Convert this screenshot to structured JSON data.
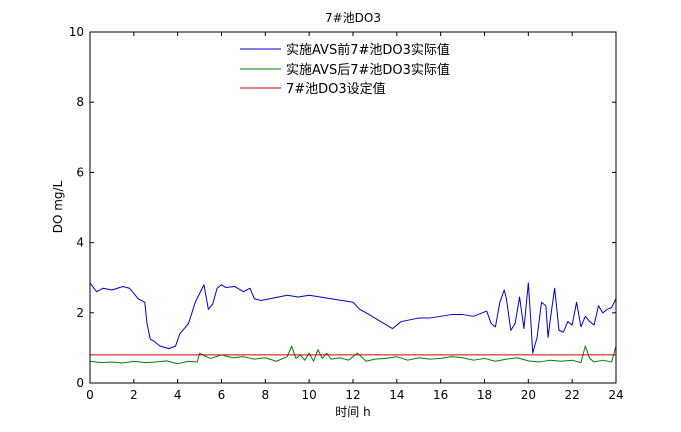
{
  "chart_data": {
    "type": "line",
    "title": "7#池DO3",
    "xlabel": "时间 h",
    "ylabel": "DO mg/L",
    "xlim": [
      0,
      24
    ],
    "ylim": [
      0,
      10
    ],
    "xticks": [
      0,
      2,
      4,
      6,
      8,
      10,
      12,
      14,
      16,
      18,
      20,
      22,
      24
    ],
    "yticks": [
      0,
      2,
      4,
      6,
      8,
      10
    ],
    "grid": false,
    "legend_position": "top-center",
    "series": [
      {
        "name": "实施AVS前7#池DO3实际值",
        "color": "#0000cc",
        "x": [
          0,
          0.3,
          0.6,
          1,
          1.5,
          1.8,
          2.2,
          2.5,
          2.6,
          2.75,
          2.9,
          3.2,
          3.6,
          3.9,
          4.1,
          4.3,
          4.5,
          4.8,
          5.0,
          5.2,
          5.4,
          5.6,
          5.8,
          6.0,
          6.2,
          6.6,
          7.0,
          7.3,
          7.5,
          7.8,
          8.2,
          8.6,
          9.0,
          9.5,
          10.0,
          10.5,
          11.0,
          11.5,
          12.0,
          12.3,
          12.6,
          13.0,
          13.4,
          13.8,
          14.2,
          14.6,
          15.0,
          15.5,
          16.0,
          16.5,
          17.0,
          17.5,
          17.9,
          18.1,
          18.3,
          18.5,
          18.7,
          18.9,
          19.0,
          19.2,
          19.4,
          19.6,
          19.8,
          20.0,
          20.1,
          20.2,
          20.4,
          20.6,
          20.8,
          20.9,
          21.0,
          21.2,
          21.4,
          21.6,
          21.8,
          22.0,
          22.2,
          22.4,
          22.6,
          22.8,
          23.0,
          23.2,
          23.4,
          23.6,
          23.8,
          24.0
        ],
        "y": [
          2.85,
          2.6,
          2.7,
          2.65,
          2.75,
          2.7,
          2.4,
          2.3,
          1.7,
          1.25,
          1.2,
          1.05,
          0.98,
          1.05,
          1.4,
          1.55,
          1.7,
          2.3,
          2.55,
          2.8,
          2.1,
          2.25,
          2.7,
          2.8,
          2.72,
          2.75,
          2.6,
          2.7,
          2.4,
          2.35,
          2.4,
          2.45,
          2.5,
          2.45,
          2.5,
          2.45,
          2.4,
          2.35,
          2.3,
          2.1,
          2.0,
          1.85,
          1.7,
          1.55,
          1.75,
          1.8,
          1.85,
          1.85,
          1.9,
          1.95,
          1.95,
          1.9,
          2.0,
          2.05,
          1.7,
          1.6,
          2.3,
          2.65,
          2.4,
          1.5,
          1.7,
          2.45,
          1.55,
          2.85,
          1.9,
          0.85,
          1.3,
          2.3,
          2.2,
          1.3,
          1.8,
          2.7,
          1.5,
          1.45,
          1.75,
          1.65,
          2.3,
          1.6,
          1.9,
          1.75,
          1.65,
          2.2,
          2.0,
          2.1,
          2.15,
          2.4
        ]
      },
      {
        "name": "实施AVS后7#池DO3实际值",
        "color": "#008000",
        "x": [
          0,
          0.5,
          1,
          1.5,
          2,
          2.5,
          3,
          3.5,
          4,
          4.5,
          4.9,
          5.0,
          5.2,
          5.5,
          6,
          6.5,
          7,
          7.5,
          8,
          8.5,
          9.0,
          9.2,
          9.4,
          9.6,
          9.8,
          10.0,
          10.2,
          10.4,
          10.6,
          10.8,
          11.0,
          11.4,
          11.8,
          12.2,
          12.6,
          13,
          13.5,
          14,
          14.5,
          15,
          15.5,
          16,
          16.5,
          17,
          17.5,
          18,
          18.5,
          19,
          19.5,
          20,
          20.5,
          21,
          21.5,
          22,
          22.4,
          22.6,
          22.8,
          23,
          23.4,
          23.8,
          24.0
        ],
        "y": [
          0.62,
          0.58,
          0.6,
          0.57,
          0.62,
          0.58,
          0.6,
          0.63,
          0.55,
          0.62,
          0.6,
          0.85,
          0.78,
          0.7,
          0.8,
          0.72,
          0.75,
          0.68,
          0.72,
          0.62,
          0.75,
          1.05,
          0.7,
          0.8,
          0.65,
          0.85,
          0.62,
          0.95,
          0.7,
          0.85,
          0.68,
          0.72,
          0.65,
          0.85,
          0.62,
          0.68,
          0.7,
          0.75,
          0.65,
          0.72,
          0.68,
          0.7,
          0.75,
          0.72,
          0.65,
          0.7,
          0.62,
          0.68,
          0.72,
          0.63,
          0.6,
          0.65,
          0.62,
          0.65,
          0.58,
          1.05,
          0.7,
          0.6,
          0.65,
          0.6,
          1.05
        ]
      },
      {
        "name": "7#池DO3设定值",
        "color": "#cc0000",
        "x": [
          0,
          24
        ],
        "y": [
          0.8,
          0.8
        ]
      }
    ]
  }
}
